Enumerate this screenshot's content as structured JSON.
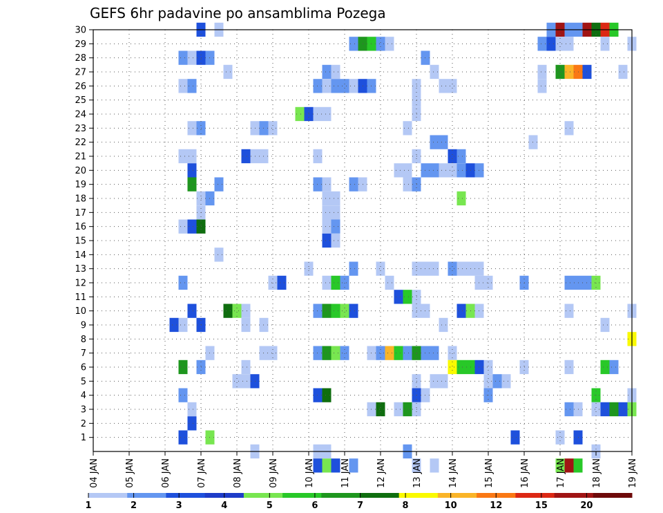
{
  "chart_data": {
    "type": "heatmap",
    "title": "GEFS 6hr padavine po ansamblima Pozega",
    "xlabel": "",
    "ylabel": "",
    "x_tick_labels": [
      "04 JAN",
      "05 JAN",
      "06 JAN",
      "07 JAN",
      "08 JAN",
      "09 JAN",
      "10 JAN",
      "11 JAN",
      "12 JAN",
      "13 JAN",
      "14 JAN",
      "15 JAN",
      "16 JAN",
      "17 JAN",
      "18 JAN",
      "19 JAN"
    ],
    "y_tick_labels": [
      1,
      2,
      3,
      4,
      5,
      6,
      7,
      8,
      9,
      10,
      11,
      12,
      13,
      14,
      15,
      16,
      17,
      18,
      19,
      20,
      21,
      22,
      23,
      24,
      25,
      26,
      27,
      28,
      29,
      30
    ],
    "x_unit": "6-hour steps from 04 JAN 00Z",
    "x_range": [
      0,
      60
    ],
    "y_range": [
      0,
      30
    ],
    "grid": true,
    "colorbar": {
      "labels": [
        1,
        2,
        3,
        4,
        5,
        6,
        7,
        8,
        10,
        12,
        15,
        20
      ],
      "colors": [
        "#b4c8f5",
        "#6496f0",
        "#1e50dc",
        "#1e3cc8",
        "#78e650",
        "#28c828",
        "#1e961e",
        "#0f6e0f",
        "#fafa00",
        "#fab428",
        "#fa7814",
        "#dc2814",
        "#a01414",
        "#6e0a0a"
      ]
    },
    "cells": [
      [
        12,
        30,
        3
      ],
      [
        14,
        30,
        1
      ],
      [
        51,
        30,
        2
      ],
      [
        52,
        30,
        13
      ],
      [
        53,
        30,
        2
      ],
      [
        54,
        30,
        2
      ],
      [
        55,
        30,
        13
      ],
      [
        56,
        30,
        8
      ],
      [
        57,
        30,
        12
      ],
      [
        58,
        30,
        6
      ],
      [
        29,
        29,
        2
      ],
      [
        30,
        29,
        7
      ],
      [
        31,
        29,
        6
      ],
      [
        32,
        29,
        2
      ],
      [
        33,
        29,
        1
      ],
      [
        50,
        29,
        2
      ],
      [
        51,
        29,
        3
      ],
      [
        52,
        29,
        1
      ],
      [
        53,
        29,
        1
      ],
      [
        57,
        29,
        1
      ],
      [
        60,
        29,
        1
      ],
      [
        10,
        28,
        2
      ],
      [
        11,
        28,
        1
      ],
      [
        12,
        28,
        3
      ],
      [
        13,
        28,
        2
      ],
      [
        37,
        28,
        2
      ],
      [
        15,
        27,
        1
      ],
      [
        26,
        27,
        2
      ],
      [
        27,
        27,
        1
      ],
      [
        38,
        27,
        1
      ],
      [
        50,
        27,
        1
      ],
      [
        52,
        27,
        7
      ],
      [
        53,
        27,
        10
      ],
      [
        54,
        27,
        11
      ],
      [
        55,
        27,
        3
      ],
      [
        59,
        27,
        1
      ],
      [
        10,
        26,
        1
      ],
      [
        11,
        26,
        2
      ],
      [
        25,
        26,
        2
      ],
      [
        26,
        26,
        1
      ],
      [
        27,
        26,
        2
      ],
      [
        28,
        26,
        2
      ],
      [
        29,
        26,
        1
      ],
      [
        30,
        26,
        3
      ],
      [
        31,
        26,
        2
      ],
      [
        36,
        26,
        1
      ],
      [
        39,
        26,
        1
      ],
      [
        40,
        26,
        1
      ],
      [
        50,
        26,
        1
      ],
      [
        36,
        25,
        1
      ],
      [
        23,
        24,
        5
      ],
      [
        24,
        24,
        3
      ],
      [
        25,
        24,
        1
      ],
      [
        26,
        24,
        1
      ],
      [
        36,
        24,
        1
      ],
      [
        11,
        23,
        1
      ],
      [
        12,
        23,
        2
      ],
      [
        18,
        23,
        1
      ],
      [
        19,
        23,
        2
      ],
      [
        20,
        23,
        1
      ],
      [
        35,
        23,
        1
      ],
      [
        53,
        23,
        1
      ],
      [
        38,
        22,
        2
      ],
      [
        39,
        22,
        2
      ],
      [
        49,
        22,
        1
      ],
      [
        10,
        21,
        1
      ],
      [
        11,
        21,
        1
      ],
      [
        17,
        21,
        3
      ],
      [
        18,
        21,
        1
      ],
      [
        19,
        21,
        1
      ],
      [
        25,
        21,
        1
      ],
      [
        36,
        21,
        1
      ],
      [
        40,
        21,
        3
      ],
      [
        41,
        21,
        2
      ],
      [
        11,
        20,
        3
      ],
      [
        34,
        20,
        1
      ],
      [
        35,
        20,
        1
      ],
      [
        37,
        20,
        2
      ],
      [
        38,
        20,
        2
      ],
      [
        39,
        20,
        1
      ],
      [
        40,
        20,
        1
      ],
      [
        41,
        20,
        2
      ],
      [
        42,
        20,
        3
      ],
      [
        43,
        20,
        2
      ],
      [
        11,
        19,
        7
      ],
      [
        14,
        19,
        2
      ],
      [
        25,
        19,
        2
      ],
      [
        26,
        19,
        1
      ],
      [
        29,
        19,
        2
      ],
      [
        30,
        19,
        1
      ],
      [
        35,
        19,
        1
      ],
      [
        36,
        19,
        2
      ],
      [
        12,
        18,
        1
      ],
      [
        13,
        18,
        2
      ],
      [
        26,
        18,
        1
      ],
      [
        27,
        18,
        1
      ],
      [
        41,
        18,
        5
      ],
      [
        12,
        17,
        1
      ],
      [
        26,
        17,
        1
      ],
      [
        27,
        17,
        1
      ],
      [
        10,
        16,
        1
      ],
      [
        11,
        16,
        3
      ],
      [
        12,
        16,
        8
      ],
      [
        26,
        16,
        1
      ],
      [
        27,
        16,
        2
      ],
      [
        26,
        15,
        3
      ],
      [
        27,
        15,
        1
      ],
      [
        14,
        14,
        1
      ],
      [
        24,
        13,
        1
      ],
      [
        29,
        13,
        2
      ],
      [
        32,
        13,
        1
      ],
      [
        36,
        13,
        1
      ],
      [
        37,
        13,
        1
      ],
      [
        38,
        13,
        1
      ],
      [
        40,
        13,
        2
      ],
      [
        41,
        13,
        1
      ],
      [
        42,
        13,
        1
      ],
      [
        43,
        13,
        1
      ],
      [
        10,
        12,
        2
      ],
      [
        20,
        12,
        1
      ],
      [
        21,
        12,
        3
      ],
      [
        26,
        12,
        1
      ],
      [
        27,
        12,
        6
      ],
      [
        28,
        12,
        2
      ],
      [
        33,
        12,
        1
      ],
      [
        43,
        12,
        1
      ],
      [
        44,
        12,
        1
      ],
      [
        48,
        12,
        2
      ],
      [
        53,
        12,
        2
      ],
      [
        54,
        12,
        2
      ],
      [
        55,
        12,
        2
      ],
      [
        56,
        12,
        5
      ],
      [
        34,
        11,
        3
      ],
      [
        35,
        11,
        6
      ],
      [
        36,
        11,
        1
      ],
      [
        11,
        10,
        3
      ],
      [
        15,
        10,
        8
      ],
      [
        16,
        10,
        5
      ],
      [
        17,
        10,
        1
      ],
      [
        25,
        10,
        2
      ],
      [
        26,
        10,
        7
      ],
      [
        27,
        10,
        6
      ],
      [
        28,
        10,
        5
      ],
      [
        29,
        10,
        3
      ],
      [
        36,
        10,
        1
      ],
      [
        37,
        10,
        1
      ],
      [
        41,
        10,
        3
      ],
      [
        42,
        10,
        5
      ],
      [
        43,
        10,
        1
      ],
      [
        53,
        10,
        1
      ],
      [
        60,
        10,
        1
      ],
      [
        9,
        9,
        3
      ],
      [
        10,
        9,
        1
      ],
      [
        12,
        9,
        3
      ],
      [
        17,
        9,
        1
      ],
      [
        19,
        9,
        1
      ],
      [
        39,
        9,
        1
      ],
      [
        57,
        9,
        1
      ],
      [
        60,
        8,
        9
      ],
      [
        13,
        7,
        1
      ],
      [
        19,
        7,
        1
      ],
      [
        20,
        7,
        1
      ],
      [
        25,
        7,
        2
      ],
      [
        26,
        7,
        7
      ],
      [
        27,
        7,
        5
      ],
      [
        28,
        7,
        2
      ],
      [
        31,
        7,
        1
      ],
      [
        32,
        7,
        2
      ],
      [
        33,
        7,
        10
      ],
      [
        34,
        7,
        6
      ],
      [
        35,
        7,
        2
      ],
      [
        36,
        7,
        7
      ],
      [
        37,
        7,
        2
      ],
      [
        38,
        7,
        2
      ],
      [
        40,
        7,
        1
      ],
      [
        10,
        6,
        7
      ],
      [
        12,
        6,
        2
      ],
      [
        17,
        6,
        1
      ],
      [
        40,
        6,
        9
      ],
      [
        41,
        6,
        6
      ],
      [
        42,
        6,
        6
      ],
      [
        43,
        6,
        3
      ],
      [
        44,
        6,
        1
      ],
      [
        48,
        6,
        1
      ],
      [
        53,
        6,
        1
      ],
      [
        57,
        6,
        6
      ],
      [
        58,
        6,
        2
      ],
      [
        16,
        5,
        1
      ],
      [
        17,
        5,
        1
      ],
      [
        18,
        5,
        3
      ],
      [
        36,
        5,
        1
      ],
      [
        38,
        5,
        1
      ],
      [
        39,
        5,
        1
      ],
      [
        44,
        5,
        1
      ],
      [
        45,
        5,
        2
      ],
      [
        46,
        5,
        1
      ],
      [
        10,
        4,
        2
      ],
      [
        25,
        4,
        3
      ],
      [
        26,
        4,
        8
      ],
      [
        36,
        4,
        3
      ],
      [
        37,
        4,
        1
      ],
      [
        44,
        4,
        2
      ],
      [
        56,
        4,
        6
      ],
      [
        60,
        4,
        1
      ],
      [
        11,
        3,
        1
      ],
      [
        31,
        3,
        1
      ],
      [
        32,
        3,
        8
      ],
      [
        34,
        3,
        1
      ],
      [
        35,
        3,
        7
      ],
      [
        36,
        3,
        1
      ],
      [
        53,
        3,
        2
      ],
      [
        54,
        3,
        1
      ],
      [
        56,
        3,
        1
      ],
      [
        57,
        3,
        3
      ],
      [
        58,
        3,
        7
      ],
      [
        59,
        3,
        3
      ],
      [
        60,
        3,
        5
      ],
      [
        11,
        2,
        3
      ],
      [
        10,
        1,
        3
      ],
      [
        13,
        1,
        5
      ],
      [
        47,
        1,
        3
      ],
      [
        52,
        1,
        1
      ],
      [
        54,
        1,
        3
      ],
      [
        18,
        0,
        1
      ],
      [
        25,
        0,
        1
      ],
      [
        26,
        0,
        1
      ],
      [
        35,
        0,
        2
      ],
      [
        56,
        0,
        1
      ],
      [
        25,
        -1,
        3
      ],
      [
        26,
        -1,
        5
      ],
      [
        27,
        -1,
        3
      ],
      [
        29,
        -1,
        2
      ],
      [
        36,
        -1,
        1
      ],
      [
        38,
        -1,
        1
      ],
      [
        52,
        -1,
        5
      ],
      [
        53,
        -1,
        13
      ],
      [
        54,
        -1,
        6
      ]
    ]
  }
}
